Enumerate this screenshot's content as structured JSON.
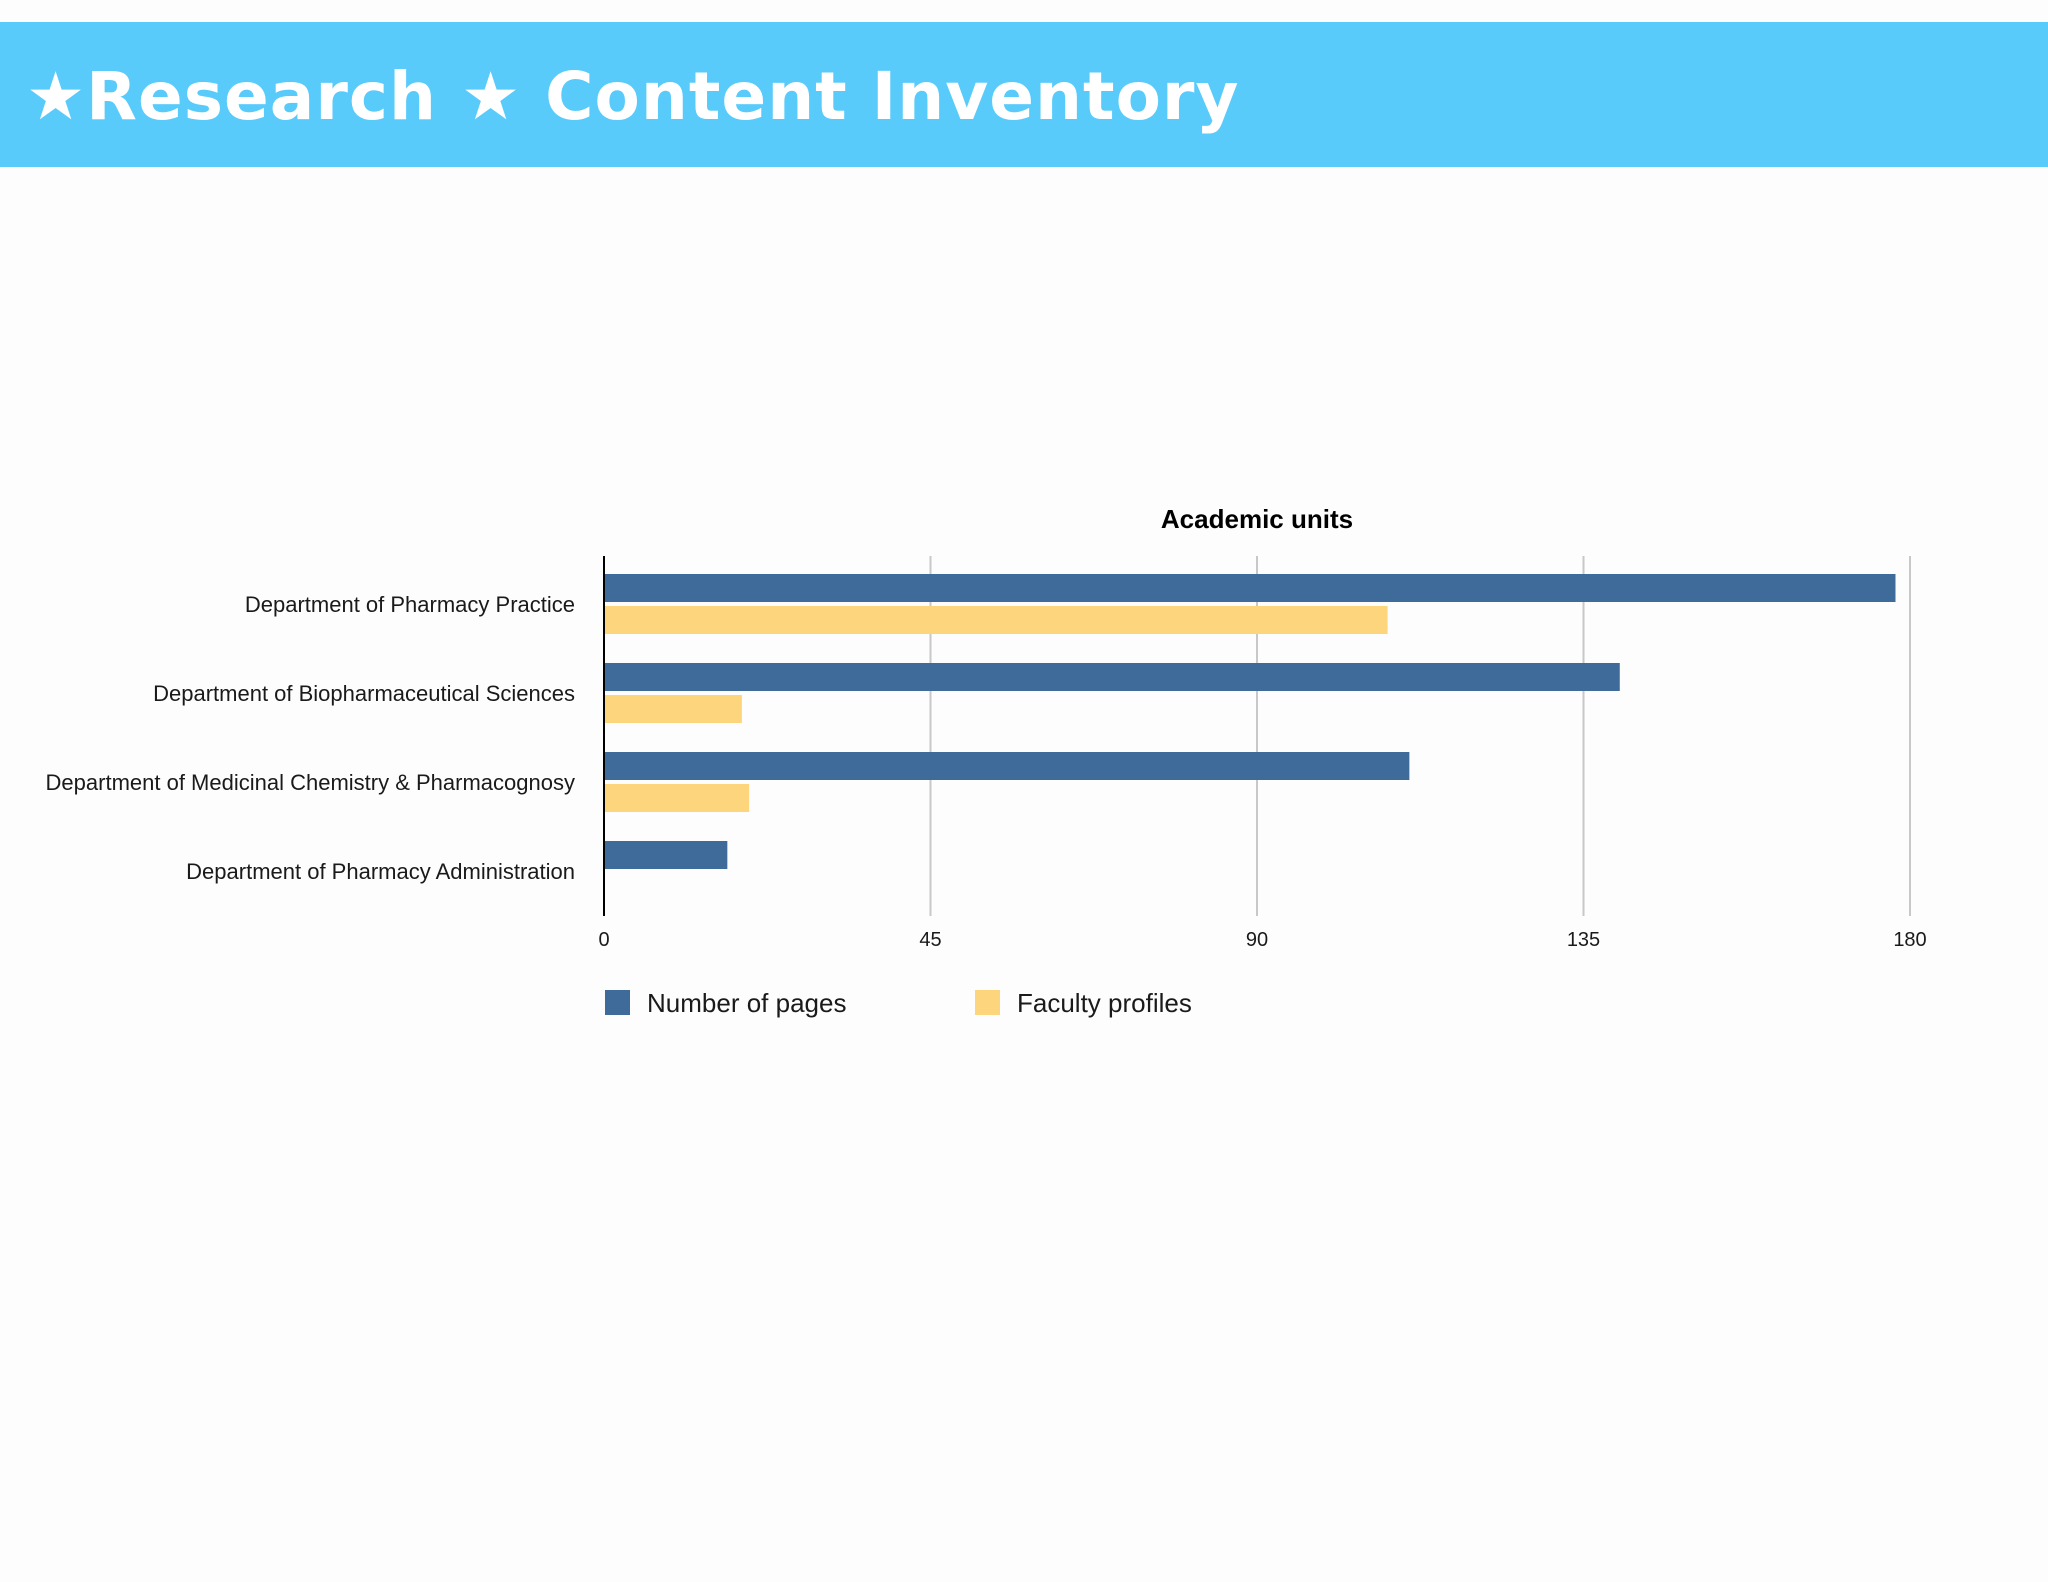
{
  "slide": {
    "title": "★Research ★ Content Inventory"
  },
  "colors": {
    "header_band": "#59cbfb",
    "title_text": "#ffffff",
    "background": "#fdfdfd",
    "gridline": "#c8c8c8",
    "axis": "#000000"
  },
  "chart_data": {
    "type": "bar",
    "orientation": "horizontal",
    "title": "Academic units",
    "xlabel": "",
    "ylabel": "",
    "categories": [
      "Department of Pharmacy Practice",
      "Department of Biopharmaceutical Sciences",
      "Department of Medicinal Chemistry & Pharmacognosy",
      "Department of Pharmacy Administration"
    ],
    "series": [
      {
        "name": "Number of pages",
        "color": "#3f6b9b",
        "values": [
          178,
          140,
          111,
          17
        ]
      },
      {
        "name": "Faculty profiles",
        "color": "#fdd57c",
        "values": [
          108,
          19,
          20,
          0
        ]
      }
    ],
    "xlim": [
      0,
      180
    ],
    "xticks": [
      "0",
      "45",
      "90",
      "135",
      "180"
    ],
    "grid": true,
    "legend_position": "bottom"
  }
}
